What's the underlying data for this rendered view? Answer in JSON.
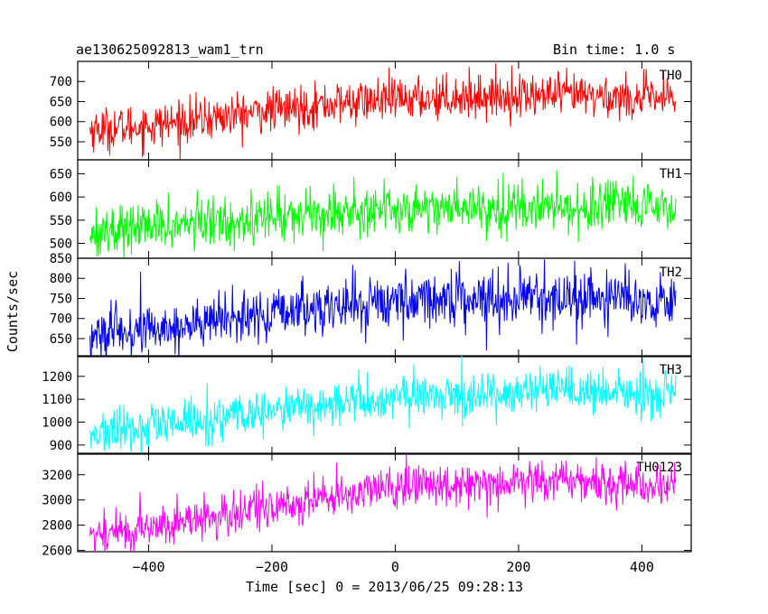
{
  "header": {
    "title": "ae130625092813_wam1_trn",
    "bin_time": "Bin time: 1.0 s"
  },
  "chart_data": {
    "type": "line",
    "xlabel": "Time [sec] 0 = 2013/06/25 09:28:13",
    "ylabel": "Counts/sec",
    "xlim": [
      -515,
      480
    ],
    "x_range": [
      -495,
      455
    ],
    "x_ticks": [
      -400,
      -200,
      0,
      200,
      400
    ],
    "x_tick_labels": [
      "−400",
      "−200",
      "0",
      "200",
      "400"
    ],
    "panels": [
      {
        "name": "TH0",
        "color": "#ff0000",
        "ylim": [
          505,
          750
        ],
        "y_ticks": [
          550,
          600,
          650,
          700
        ],
        "trend": [
          [
            -495,
            580
          ],
          [
            -400,
            590
          ],
          [
            -300,
            608
          ],
          [
            -200,
            628
          ],
          [
            -100,
            645
          ],
          [
            0,
            655
          ],
          [
            100,
            662
          ],
          [
            200,
            665
          ],
          [
            300,
            665
          ],
          [
            455,
            655
          ]
        ],
        "noise": 27
      },
      {
        "name": "TH1",
        "color": "#00ff00",
        "ylim": [
          468,
          680
        ],
        "y_ticks": [
          500,
          550,
          600,
          650
        ],
        "trend": [
          [
            -495,
            525
          ],
          [
            -400,
            535
          ],
          [
            -300,
            545
          ],
          [
            -200,
            558
          ],
          [
            -100,
            568
          ],
          [
            0,
            575
          ],
          [
            100,
            578
          ],
          [
            200,
            578
          ],
          [
            300,
            578
          ],
          [
            455,
            575
          ]
        ],
        "noise": 27
      },
      {
        "name": "TH2",
        "color": "#0000ff",
        "ylim": [
          605,
          850
        ],
        "y_ticks": [
          650,
          700,
          750,
          800,
          850
        ],
        "trend": [
          [
            -495,
            655
          ],
          [
            -400,
            672
          ],
          [
            -300,
            690
          ],
          [
            -200,
            710
          ],
          [
            -100,
            730
          ],
          [
            0,
            745
          ],
          [
            100,
            752
          ],
          [
            200,
            752
          ],
          [
            300,
            750
          ],
          [
            455,
            745
          ]
        ],
        "noise": 33
      },
      {
        "name": "TH3",
        "color": "#00ffff",
        "ylim": [
          860,
          1290
        ],
        "y_ticks": [
          900,
          1000,
          1100,
          1200
        ],
        "trend": [
          [
            -495,
            945
          ],
          [
            -400,
            975
          ],
          [
            -300,
            1010
          ],
          [
            -200,
            1045
          ],
          [
            -100,
            1080
          ],
          [
            0,
            1105
          ],
          [
            100,
            1120
          ],
          [
            200,
            1130
          ],
          [
            300,
            1130
          ],
          [
            455,
            1115
          ]
        ],
        "noise": 48
      },
      {
        "name": "TH0123",
        "color": "#ff00ff",
        "ylim": [
          2590,
          3370
        ],
        "y_ticks": [
          2600,
          2800,
          3000,
          3200
        ],
        "trend": [
          [
            -495,
            2720
          ],
          [
            -400,
            2780
          ],
          [
            -300,
            2860
          ],
          [
            -200,
            2940
          ],
          [
            -100,
            3030
          ],
          [
            0,
            3100
          ],
          [
            100,
            3135
          ],
          [
            200,
            3150
          ],
          [
            300,
            3150
          ],
          [
            455,
            3110
          ]
        ],
        "noise": 85
      }
    ]
  }
}
